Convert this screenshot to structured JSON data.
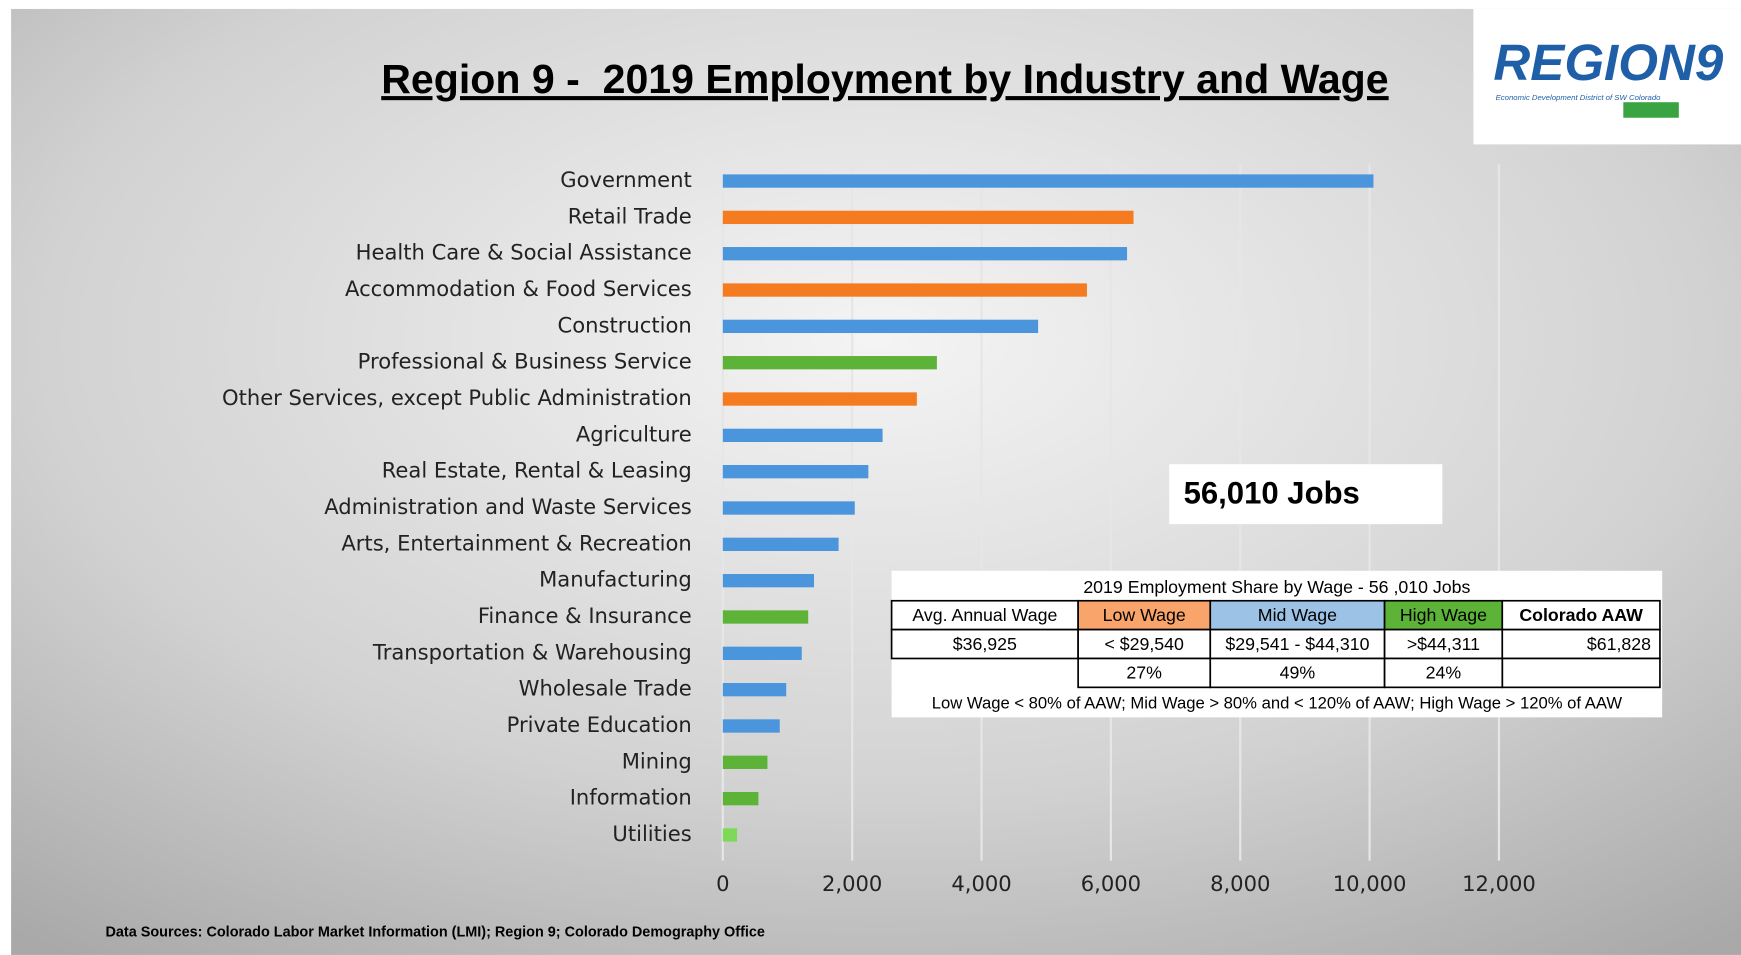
{
  "chart_data": {
    "type": "bar",
    "orientation": "horizontal",
    "title": "Region 9 -  2019 Employment by Industry and Wage",
    "categories": [
      "Government",
      "Retail Trade",
      "Health Care & Social Assistance",
      "Accommodation & Food Services",
      "Construction",
      "Professional & Business Service",
      "Other Services, except Public Administration",
      "Agriculture",
      "Real Estate, Rental & Leasing",
      "Administration and Waste Services",
      "Arts, Entertainment & Recreation",
      "Manufacturing",
      "Finance & Insurance",
      "Transportation & Warehousing",
      "Wholesale Trade",
      "Private Education",
      "Mining",
      "Information",
      "Utilities"
    ],
    "values": [
      10060,
      6350,
      6250,
      5630,
      4875,
      3310,
      3000,
      2470,
      2250,
      2040,
      1790,
      1410,
      1320,
      1220,
      980,
      880,
      690,
      550,
      220
    ],
    "colors": [
      "#4a95dc",
      "#f47b20",
      "#4a95dc",
      "#f47b20",
      "#4a95dc",
      "#5cb338",
      "#f47b20",
      "#4a95dc",
      "#4a95dc",
      "#4a95dc",
      "#4a95dc",
      "#4a95dc",
      "#5cb338",
      "#4a95dc",
      "#4a95dc",
      "#4a95dc",
      "#5cb338",
      "#5cb338",
      "#7ed957"
    ],
    "xlim": [
      0,
      12000
    ],
    "xticks": [
      0,
      {
        "value": 2000,
        "label": "2,000"
      },
      {
        "value": 4000,
        "label": "4,000"
      },
      {
        "value": 6000,
        "label": "6,000"
      },
      {
        "value": 8000,
        "label": "8,000"
      },
      {
        "value": 10000,
        "label": "10,000"
      },
      {
        "value": 12000,
        "label": "12,000"
      }
    ],
    "grid": true
  },
  "logo": {
    "text": "REGION9",
    "subtitle": "Economic Development District of SW Colorado"
  },
  "jobs_box": "56,010 Jobs",
  "table": {
    "title": "2019 Employment Share by Wage - 56 ,010 Jobs",
    "header": [
      "Avg. Annual Wage",
      "Low Wage",
      "Mid Wage",
      "High Wage",
      "Colorado AAW"
    ],
    "row": [
      "$36,925",
      "< $29,540",
      "$29,541 - $44,310",
      ">$44,311",
      "$61,828"
    ],
    "shares": [
      "27%",
      "49%",
      "24%"
    ],
    "note": "Low Wage < 80% of AAW; Mid Wage > 80% and < 120% of AAW; High Wage > 120% of AAW"
  },
  "source": "Data Sources: Colorado Labor Market Information (LMI); Region 9; Colorado Demography Office"
}
